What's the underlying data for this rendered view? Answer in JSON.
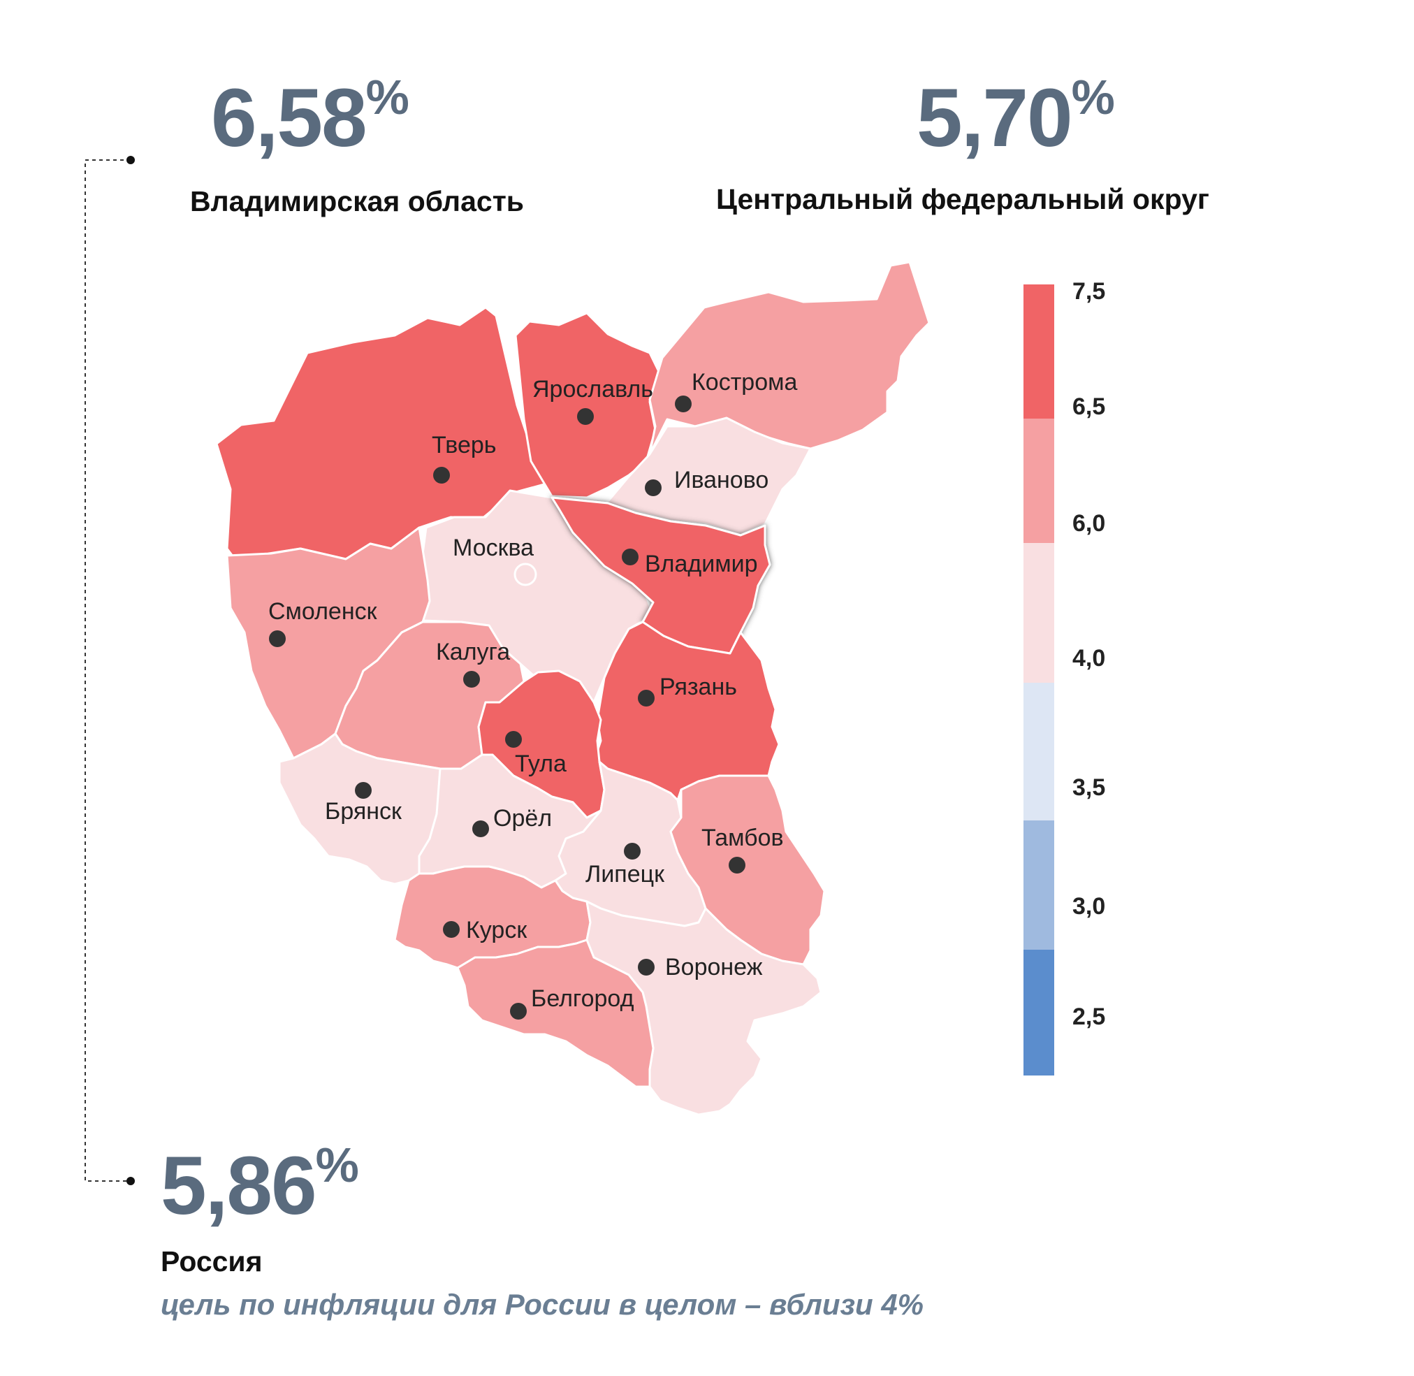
{
  "stats": {
    "region": {
      "value": "6,58",
      "unit": "%",
      "label": "Владимирская область"
    },
    "district": {
      "value": "5,70",
      "unit": "%",
      "label": "Центральный федеральный округ"
    },
    "russia": {
      "value": "5,86",
      "unit": "%",
      "label": "Россия",
      "note": "цель по инфляции для России в целом – вблизи 4%"
    }
  },
  "legend": {
    "labels": [
      "7,5",
      "6,5",
      "6,0",
      "4,0",
      "3,5",
      "3,0",
      "2,5"
    ],
    "colors": [
      "#f06466",
      "#f5a0a2",
      "#f9dfe1",
      "#dde6f4",
      "#9fbadf",
      "#5b8dcd"
    ]
  },
  "colors": {
    "high": "#f06466",
    "mid": "#f5a0a2",
    "low": "#f9dfe1",
    "stat_text": "#5a6b7e",
    "note_text": "#6a7e93",
    "border": "#ffffff",
    "city_dot": "#333333"
  },
  "regions": [
    {
      "name": "Ярославль",
      "class": "high"
    },
    {
      "name": "Кострома",
      "class": "high"
    },
    {
      "name": "Тверь",
      "class": "mid"
    },
    {
      "name": "Иваново",
      "class": "low"
    },
    {
      "name": "Москва",
      "class": "low"
    },
    {
      "name": "Владимир",
      "class": "high"
    },
    {
      "name": "Смоленск",
      "class": "mid"
    },
    {
      "name": "Калуга",
      "class": "mid"
    },
    {
      "name": "Рязань",
      "class": "high"
    },
    {
      "name": "Тула",
      "class": "high"
    },
    {
      "name": "Брянск",
      "class": "low"
    },
    {
      "name": "Орёл",
      "class": "low"
    },
    {
      "name": "Липецк",
      "class": "low"
    },
    {
      "name": "Тамбов",
      "class": "mid"
    },
    {
      "name": "Курск",
      "class": "mid"
    },
    {
      "name": "Воронеж",
      "class": "low"
    },
    {
      "name": "Белгород",
      "class": "mid"
    }
  ]
}
